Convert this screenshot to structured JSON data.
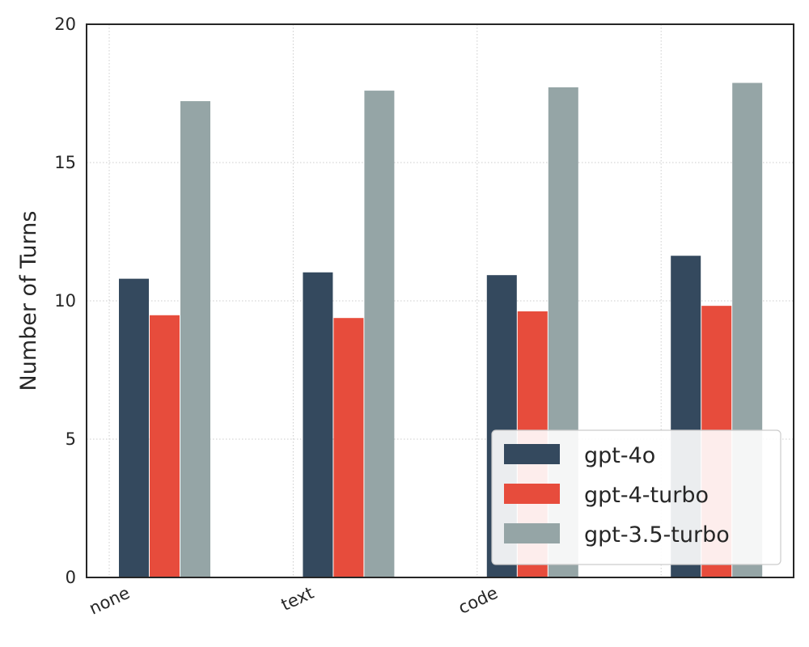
{
  "chart_data": {
    "type": "bar",
    "title": "",
    "xlabel": "",
    "ylabel": "Number of Turns",
    "ylim": [
      0,
      20
    ],
    "yticks": [
      0,
      5,
      10,
      15,
      20
    ],
    "categories": [
      "none",
      "text",
      "code",
      ""
    ],
    "series": [
      {
        "name": "gpt-4o",
        "color": "#34495e",
        "values": [
          10.8,
          11.03,
          10.93,
          11.63
        ]
      },
      {
        "name": "gpt-4-turbo",
        "color": "#e74c3c",
        "values": [
          9.48,
          9.38,
          9.62,
          9.82
        ]
      },
      {
        "name": "gpt-3.5-turbo",
        "color": "#95a5a6",
        "values": [
          17.22,
          17.6,
          17.72,
          17.88
        ]
      }
    ],
    "grid": true,
    "legend_position": "bottom-right"
  }
}
